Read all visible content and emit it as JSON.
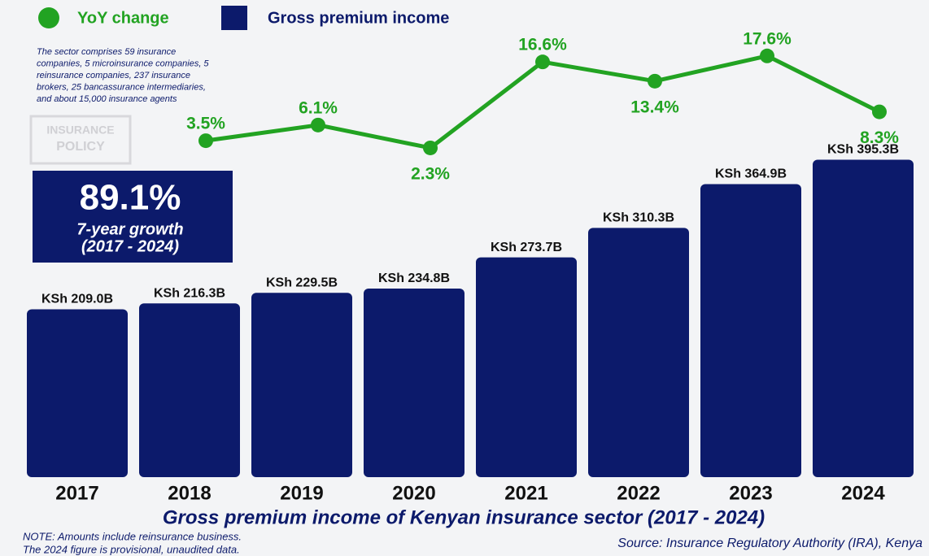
{
  "chart_data": {
    "type": "bar",
    "title": "Gross premium income of Kenyan insurance sector (2017 - 2024)",
    "categories": [
      "2017",
      "2018",
      "2019",
      "2020",
      "2021",
      "2022",
      "2023",
      "2024"
    ],
    "series": [
      {
        "name": "YoY change",
        "type": "line",
        "axis": "y2",
        "color": "#22a322",
        "values": [
          null,
          3.5,
          6.1,
          2.3,
          16.6,
          13.4,
          17.6,
          8.3
        ],
        "value_labels": [
          null,
          "3.5%",
          "6.1%",
          "2.3%",
          "16.6%",
          "13.4%",
          "17.6%",
          "8.3%"
        ]
      },
      {
        "name": "Gross premium income",
        "type": "bar",
        "color": "#0c1a6b",
        "values": [
          209.0,
          216.3,
          229.5,
          234.8,
          273.7,
          310.3,
          364.9,
          395.3
        ],
        "value_labels": [
          "KSh 209.0B",
          "KSh 216.3B",
          "KSh 229.5B",
          "KSh 234.8B",
          "KSh 273.7B",
          "KSh 310.3B",
          "KSh 364.9B",
          "KSh 395.3B"
        ]
      }
    ],
    "annotation": [
      "The sector comprises 59 insurance",
      "companies, 5 microinsurance companies, 5",
      "reinsurance companies, 237 insurance",
      "brokers, 25 bancassurance intermediaries,",
      "and about 15,000 insurance agents"
    ],
    "logo": [
      "INSURANCE",
      "POLICY"
    ],
    "highlight": {
      "value": "89.1%",
      "label": "7-year growth",
      "period": "(2017 - 2024)"
    },
    "note": [
      "NOTE: Amounts include reinsurance business.",
      "The 2024 figure is provisional, unaudited data."
    ],
    "source": "Source: Insurance Regulatory Authority (IRA), Kenya"
  }
}
